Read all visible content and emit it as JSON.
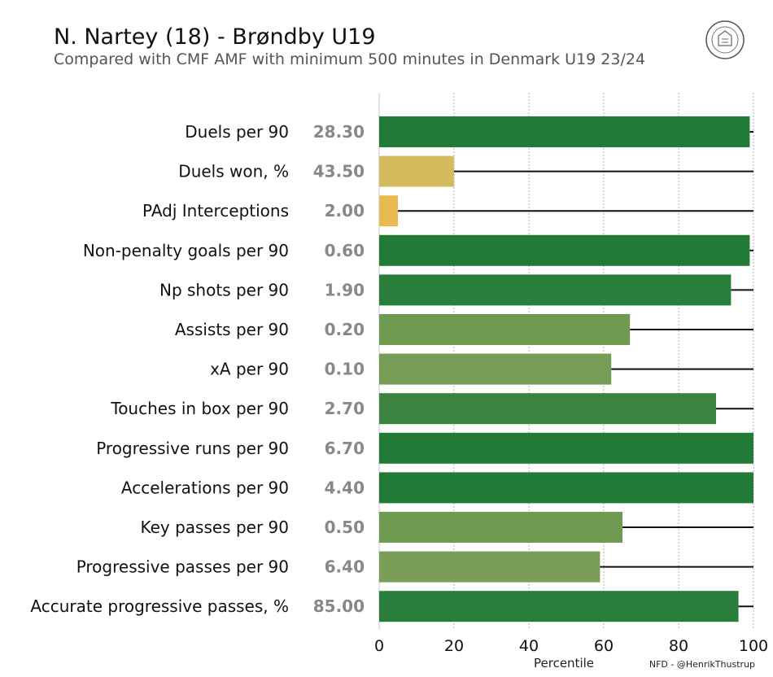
{
  "header": {
    "title": "N. Nartey (18) - Brøndby U19",
    "subtitle": "Compared with CMF AMF with minimum 500 minutes in Denmark U19 23/24"
  },
  "logo": {
    "text": "NORDIC FOOTBALL DATA"
  },
  "credit": "NFD - @HenrikThustrup",
  "chart_data": {
    "type": "bar",
    "orientation": "horizontal",
    "xlabel": "Percentile",
    "xlim": [
      0,
      100
    ],
    "xticks": [
      "0",
      "20",
      "40",
      "60",
      "80",
      "100"
    ],
    "grid": "vertical dotted",
    "categories": [
      "Duels per 90",
      "Duels won, %",
      "PAdj Interceptions",
      "Non-penalty goals per 90",
      "Np shots per 90",
      "Assists per 90",
      "xA per 90",
      "Touches in box per 90",
      "Progressive runs per 90",
      "Accelerations per 90",
      "Key passes per 90",
      "Progressive passes per 90",
      "Accurate progressive passes, %"
    ],
    "raw_values": [
      "28.30",
      "43.50",
      "2.00",
      "0.60",
      "1.90",
      "0.20",
      "0.10",
      "2.70",
      "6.70",
      "4.40",
      "0.50",
      "6.40",
      "85.00"
    ],
    "percentiles": [
      99,
      20,
      5,
      99,
      94,
      67,
      62,
      90,
      100,
      100,
      65,
      59,
      96
    ],
    "colors": [
      "#227a37",
      "#d4bb5b",
      "#e8bb50",
      "#227a37",
      "#2a7e3c",
      "#6f9a51",
      "#769c55",
      "#3a8440",
      "#227a37",
      "#227a37",
      "#6f9a51",
      "#7a9e58",
      "#2a7e3c"
    ]
  }
}
